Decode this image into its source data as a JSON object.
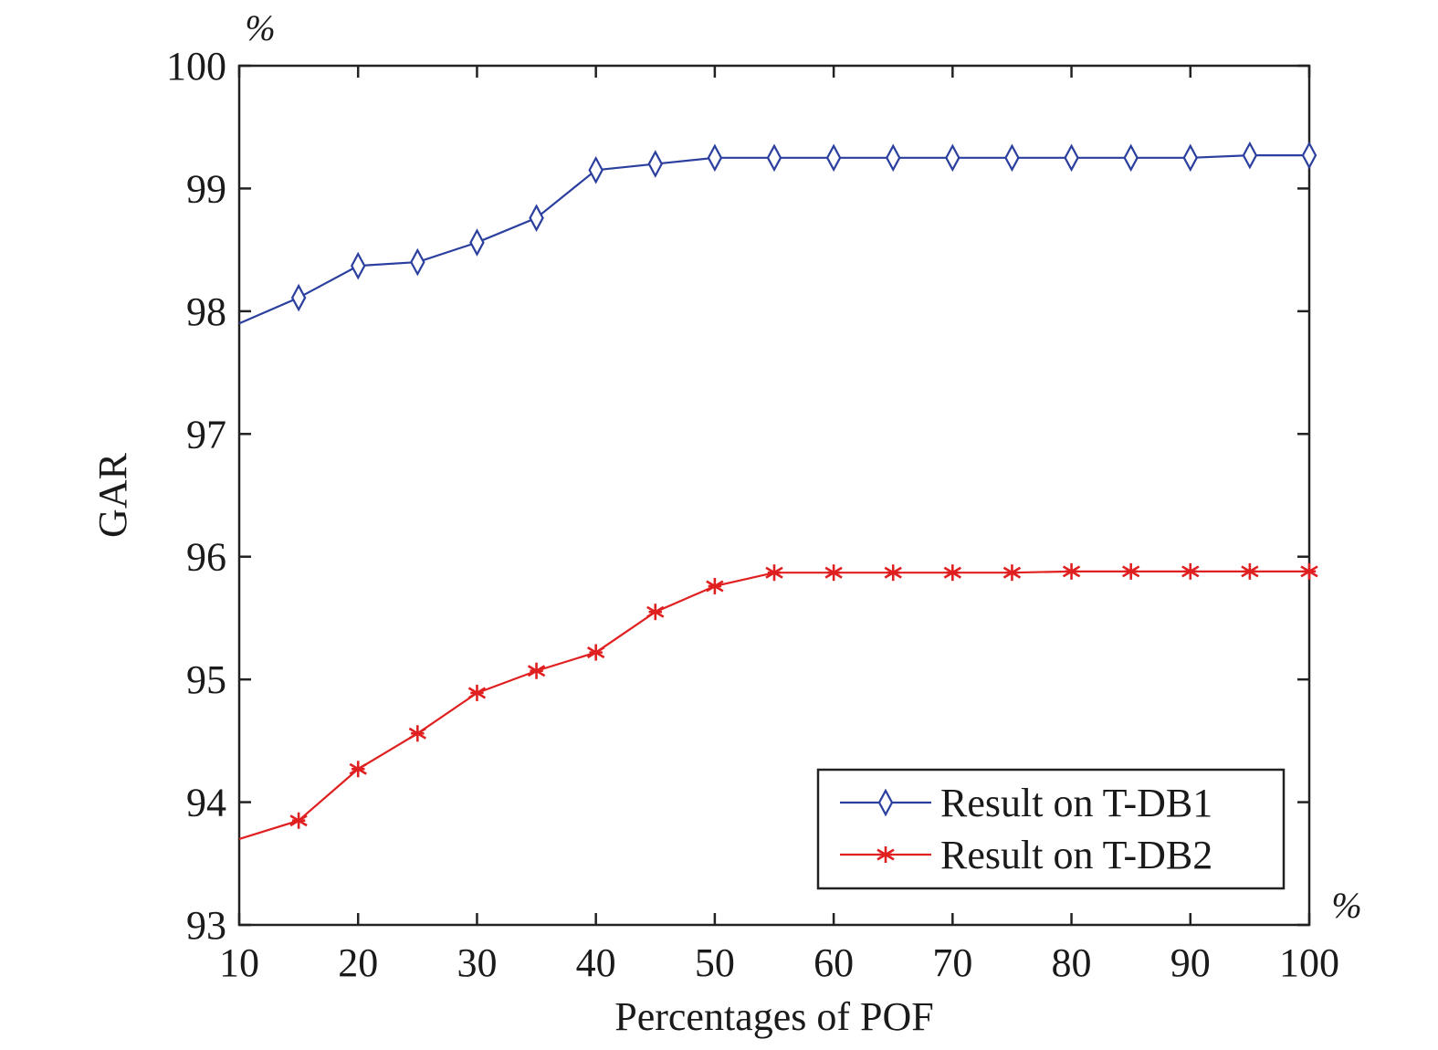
{
  "chart_data": {
    "type": "line",
    "xlabel": "Percentages of POF",
    "ylabel": "GAR",
    "x_unit": "%",
    "y_unit": "%",
    "xlim": [
      10,
      100
    ],
    "ylim": [
      93,
      100
    ],
    "xticks": [
      10,
      20,
      30,
      40,
      50,
      60,
      70,
      80,
      90,
      100
    ],
    "yticks": [
      93,
      94,
      95,
      96,
      97,
      98,
      99,
      100
    ],
    "grid": false,
    "legend_position": "bottom-right",
    "x": [
      10,
      15,
      20,
      25,
      30,
      35,
      40,
      45,
      50,
      55,
      60,
      65,
      70,
      75,
      80,
      85,
      90,
      95,
      100
    ],
    "series": [
      {
        "name": "Result on T-DB1",
        "color": "#2b3f9e",
        "marker": "diamond",
        "values": [
          97.9,
          98.11,
          98.37,
          98.4,
          98.56,
          98.76,
          99.15,
          99.2,
          99.25,
          99.25,
          99.25,
          99.25,
          99.25,
          99.25,
          99.25,
          99.25,
          99.25,
          99.27,
          99.27
        ],
        "marker_mask": [
          false,
          true,
          true,
          true,
          true,
          true,
          true,
          true,
          true,
          true,
          true,
          true,
          true,
          true,
          true,
          true,
          true,
          true,
          true
        ]
      },
      {
        "name": "Result on T-DB2",
        "color": "#e02020",
        "marker": "asterisk",
        "values": [
          93.7,
          93.85,
          94.27,
          94.56,
          94.89,
          95.07,
          95.22,
          95.55,
          95.76,
          95.87,
          95.87,
          95.87,
          95.87,
          95.87,
          95.88,
          95.88,
          95.88,
          95.88,
          95.88
        ],
        "marker_mask": [
          false,
          true,
          true,
          true,
          true,
          true,
          true,
          true,
          true,
          true,
          true,
          true,
          true,
          true,
          true,
          true,
          true,
          true,
          true
        ]
      }
    ]
  }
}
